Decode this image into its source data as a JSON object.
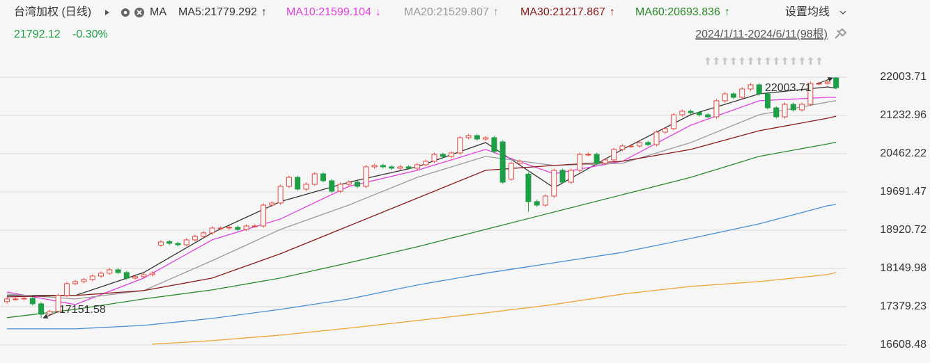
{
  "chart_data": {
    "type": "candlestick",
    "title": "台湾加权 (日线)",
    "ma_label": "MA",
    "settings_label": "设置均线",
    "change": "-0.30%",
    "date_range": "2024/1/11-2024/6/11(98根)",
    "legend_separator": ":",
    "ylim": [
      16328,
      22228
    ],
    "yticks": [
      22003.71,
      21232.96,
      20462.22,
      19691.47,
      18920.72,
      18149.98,
      17379.23,
      16608.48
    ],
    "grid": true,
    "candles": {
      "up_color": "#e8473f",
      "down_color": "#1e9e45",
      "open": [
        17480,
        17535,
        17535,
        17549,
        17437,
        17227,
        17283,
        17605,
        17843,
        17885,
        17927,
        17997,
        18053,
        18123,
        18067,
        17955,
        17983,
        18025,
        18620,
        18690,
        18655,
        18627,
        18725,
        18796,
        18866,
        18964,
        18964,
        18978,
        18936,
        19006,
        19006,
        19426,
        19468,
        19804,
        19986,
        19748,
        19846,
        20056,
        19916,
        19706,
        19846,
        19888,
        19804,
        20197,
        20225,
        20197,
        20169,
        20197,
        20169,
        20239,
        20309,
        20449,
        20407,
        20477,
        20785,
        20827,
        20757,
        20785,
        20700,
        19950,
        20267,
        20050,
        19496,
        19426,
        19608,
        20127,
        19888,
        20127,
        20449,
        20449,
        20267,
        20337,
        20547,
        20617,
        20617,
        20687,
        20645,
        20897,
        20967,
        21247,
        21317,
        21289,
        21247,
        21205,
        21528,
        21668,
        21598,
        21766,
        21850,
        21668,
        21387,
        21205,
        21457,
        21345,
        21457,
        21878,
        21878,
        21990
      ],
      "high": [
        17570,
        17570,
        17584,
        17584,
        17472,
        17318,
        17640,
        17878,
        17920,
        17962,
        18032,
        18088,
        18158,
        18158,
        18102,
        18018,
        18060,
        18088,
        18719,
        18725,
        18690,
        18760,
        18831,
        18901,
        18999,
        18999,
        19013,
        19013,
        19041,
        19041,
        19461,
        19503,
        19839,
        20021,
        20021,
        19881,
        20091,
        20091,
        19951,
        19881,
        19923,
        19923,
        20232,
        20260,
        20260,
        20232,
        20232,
        20232,
        20274,
        20344,
        20484,
        20484,
        20512,
        20820,
        20862,
        20862,
        20820,
        20820,
        20735,
        20302,
        20344,
        20085,
        19531,
        19643,
        20162,
        20162,
        20162,
        20484,
        20484,
        20484,
        20372,
        20582,
        20652,
        20652,
        20722,
        20722,
        20932,
        21002,
        21282,
        21352,
        21352,
        21324,
        21282,
        21563,
        21703,
        21703,
        21801,
        21885,
        21885,
        21703,
        21422,
        21492,
        21492,
        21492,
        21913,
        21913,
        21941,
        22003.71
      ],
      "low": [
        17445,
        17500,
        17500,
        17402,
        17151.58,
        17192,
        17248,
        17570,
        17808,
        17850,
        17892,
        17962,
        18018,
        18032,
        17920,
        17920,
        17948,
        17990,
        18585,
        18620,
        18592,
        18592,
        18690,
        18761,
        18831,
        18929,
        18929,
        18901,
        18901,
        18971,
        18971,
        19391,
        19433,
        19769,
        19713,
        19713,
        19811,
        19881,
        19671,
        19671,
        19811,
        19769,
        19769,
        20162,
        20162,
        20134,
        20134,
        20134,
        20134,
        20204,
        20274,
        20372,
        20372,
        20442,
        20750,
        20722,
        20722,
        20470,
        19853,
        19915,
        20232,
        19286,
        19391,
        19391,
        19573,
        19853,
        19853,
        20092,
        20414,
        20232,
        20232,
        20302,
        20512,
        20582,
        20582,
        20610,
        20610,
        20862,
        20932,
        21212,
        21254,
        21212,
        21170,
        21170,
        21493,
        21563,
        21563,
        21731,
        21633,
        21352,
        21170,
        21170,
        21310,
        21310,
        21422,
        21843,
        21843,
        21757
      ],
      "close": [
        17535,
        17535,
        17549,
        17437,
        17227,
        17283,
        17605,
        17843,
        17885,
        17927,
        17997,
        18053,
        18123,
        18067,
        17955,
        17983,
        18025,
        18053,
        18684,
        18655,
        18627,
        18725,
        18796,
        18866,
        18964,
        18964,
        18978,
        18936,
        19006,
        19006,
        19426,
        19468,
        19804,
        19986,
        19748,
        19846,
        20056,
        19916,
        19706,
        19846,
        19888,
        19804,
        20197,
        20225,
        20197,
        20169,
        20197,
        20169,
        20239,
        20309,
        20449,
        20407,
        20477,
        20785,
        20827,
        20757,
        20785,
        20505,
        19888,
        20267,
        20309,
        19496,
        19426,
        19608,
        20127,
        19888,
        20127,
        20449,
        20449,
        20267,
        20337,
        20547,
        20617,
        20617,
        20687,
        20645,
        20897,
        20967,
        21247,
        21317,
        21289,
        21247,
        21205,
        21528,
        21668,
        21598,
        21766,
        21850,
        21668,
        21387,
        21205,
        21457,
        21345,
        21457,
        21878,
        21878,
        21906,
        21792.12
      ]
    },
    "lines": [
      {
        "name": "MA5",
        "trend": "↑",
        "color": "#333333",
        "x": [
          0,
          8,
          16,
          24,
          32,
          40,
          48,
          56,
          64,
          72,
          80,
          88,
          96,
          97
        ],
        "values": [
          17605,
          17605,
          18067,
          18866,
          19496,
          19888,
          20197,
          20687,
          19776,
          20547,
          21247,
          21668,
          21808,
          21779.292
        ]
      },
      {
        "name": "MA10",
        "trend": "↓",
        "color": "#e040e0",
        "x": [
          0,
          8,
          16,
          24,
          32,
          40,
          48,
          56,
          64,
          72,
          80,
          88,
          96,
          97
        ],
        "values": [
          17675,
          17423,
          17955,
          18726,
          19146,
          19804,
          20127,
          20547,
          20057,
          20309,
          21037,
          21528,
          21598,
          21599.104
        ]
      },
      {
        "name": "MA20",
        "trend": "↑",
        "color": "#9a9a9a",
        "x": [
          0,
          8,
          16,
          24,
          32,
          40,
          48,
          56,
          64,
          72,
          80,
          88,
          96,
          97
        ],
        "values": [
          17633,
          17535,
          17703,
          18305,
          18936,
          19426,
          19986,
          20407,
          20225,
          20267,
          20687,
          21247,
          21500,
          21529.807
        ]
      },
      {
        "name": "MA30",
        "trend": "↑",
        "color": "#8b1a1a",
        "x": [
          0,
          8,
          16,
          24,
          32,
          40,
          48,
          56,
          64,
          72,
          80,
          88,
          96,
          97
        ],
        "values": [
          17577,
          17605,
          17703,
          17955,
          18445,
          19006,
          19566,
          20127,
          20225,
          20309,
          20547,
          20925,
          21177,
          21217.867
        ]
      },
      {
        "name": "MA60",
        "trend": "↑",
        "color": "#2a8a2a",
        "x": [
          0,
          8,
          16,
          24,
          32,
          40,
          48,
          56,
          64,
          72,
          80,
          88,
          96,
          97
        ],
        "values": [
          17157,
          17325,
          17535,
          17717,
          17955,
          18263,
          18585,
          18936,
          19286,
          19636,
          19986,
          20407,
          20659,
          20693.836
        ]
      },
      {
        "color": "#4a8fd6",
        "x": [
          0,
          8,
          16,
          24,
          32,
          40,
          48,
          56,
          64,
          72,
          80,
          88,
          96,
          97
        ],
        "values": [
          16932,
          16932,
          17002,
          17142,
          17325,
          17535,
          17815,
          18055,
          18263,
          18473,
          18754,
          19048,
          19412,
          19440
        ]
      },
      {
        "color": "#f0a030",
        "x": [
          17,
          24,
          32,
          40,
          48,
          56,
          64,
          72,
          80,
          88,
          96,
          97
        ],
        "values": [
          16624,
          16694,
          16806,
          16946,
          17100,
          17255,
          17423,
          17633,
          17787,
          17885,
          18025,
          18067
        ]
      }
    ]
  }
}
